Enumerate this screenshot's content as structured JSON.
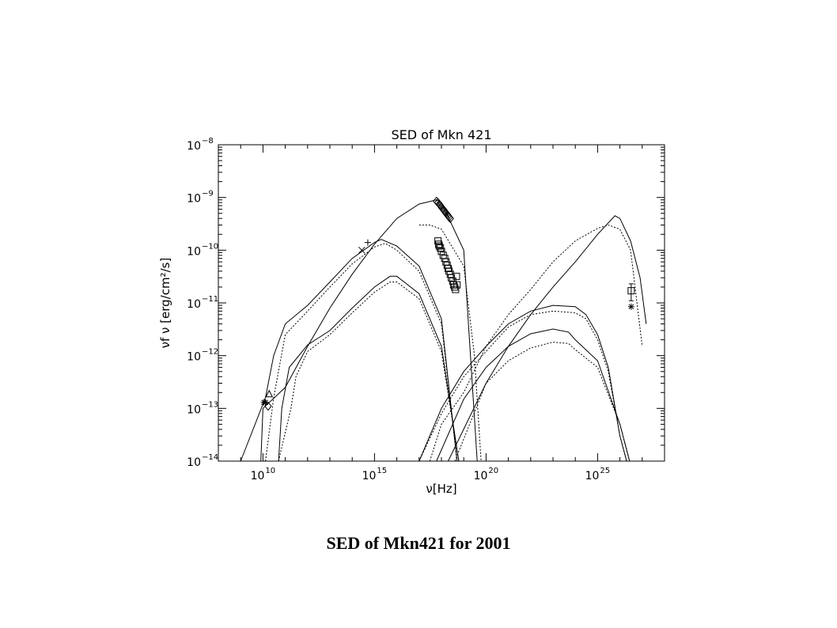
{
  "caption": "SED of Mkn421 for 2001",
  "chart_data": {
    "type": "line",
    "title": "SED of Mkn 421",
    "xlabel": "ν[Hz]",
    "ylabel": "νf ν [erg/cm²/s]",
    "x_scale": "log",
    "y_scale": "log",
    "xlim": [
      100000000.0,
      1e+28
    ],
    "ylim": [
      1e-14,
      1e-08
    ],
    "x_ticks": [
      {
        "value": 10000000000.0,
        "base": "10",
        "exp": "10"
      },
      {
        "value": 1000000000000000.0,
        "base": "10",
        "exp": "15"
      },
      {
        "value": 1e+20,
        "base": "10",
        "exp": "20"
      },
      {
        "value": 1e+25,
        "base": "10",
        "exp": "25"
      }
    ],
    "y_ticks": [
      {
        "value": 1e-14,
        "base": "10",
        "exp": "−14"
      },
      {
        "value": 1e-13,
        "base": "10",
        "exp": "−13"
      },
      {
        "value": 1e-12,
        "base": "10",
        "exp": "−12"
      },
      {
        "value": 1e-11,
        "base": "10",
        "exp": "−11"
      },
      {
        "value": 1e-10,
        "base": "10",
        "exp": "−10"
      },
      {
        "value": 1e-09,
        "base": "10",
        "exp": "−9"
      },
      {
        "value": 1e-08,
        "base": "10",
        "exp": "−8"
      }
    ],
    "grid": false,
    "series": [
      {
        "style": "solid",
        "points": [
          [
            1000000000.0,
            1e-14
          ],
          [
            13000000000.0,
            1.6e-13
          ],
          [
            30000000000.0,
            1e-12
          ],
          [
            100000000000.0,
            4e-12
          ],
          [
            1000000000000.0,
            9e-12
          ],
          [
            10000000000000.0,
            2.5e-11
          ],
          [
            100000000000000.0,
            7e-11
          ],
          [
            1000000000000000.0,
            1.4e-10
          ],
          [
            2000000000000000.0,
            1.6e-10
          ],
          [
            1e+16,
            1.2e-10
          ],
          [
            1e+17,
            5e-11
          ],
          [
            1e+18,
            5e-12
          ],
          [
            5e+18,
            1e-14
          ]
        ]
      },
      {
        "style": "dotted",
        "points": [
          [
            13000000000.0,
            1e-14
          ],
          [
            30000000000.0,
            1.6e-13
          ],
          [
            100000000000.0,
            2.5e-12
          ],
          [
            1000000000000.0,
            7e-12
          ],
          [
            10000000000000.0,
            2e-11
          ],
          [
            100000000000000.0,
            5.5e-11
          ],
          [
            1000000000000000.0,
            1.15e-10
          ],
          [
            3000000000000000.0,
            1.35e-10
          ],
          [
            1e+16,
            1e-10
          ],
          [
            1e+17,
            4e-11
          ],
          [
            1e+18,
            4e-12
          ],
          [
            5e+18,
            1e-14
          ]
        ]
      },
      {
        "style": "solid",
        "points": [
          [
            50000000000.0,
            1e-14
          ],
          [
            70000000000.0,
            1e-13
          ],
          [
            150000000000.0,
            6e-13
          ],
          [
            1000000000000.0,
            1.6e-12
          ],
          [
            10000000000000.0,
            3e-12
          ],
          [
            100000000000000.0,
            8e-12
          ],
          [
            1000000000000000.0,
            2e-11
          ],
          [
            5000000000000000.0,
            3.2e-11
          ],
          [
            1e+16,
            3.2e-11
          ],
          [
            1e+17,
            1.5e-11
          ],
          [
            1e+18,
            1.5e-12
          ],
          [
            6e+18,
            1e-14
          ]
        ]
      },
      {
        "style": "dotted",
        "points": [
          [
            50000000000.0,
            1e-14
          ],
          [
            180000000000.0,
            1e-13
          ],
          [
            300000000000.0,
            4e-13
          ],
          [
            1000000000000.0,
            1.2e-12
          ],
          [
            10000000000000.0,
            2.5e-12
          ],
          [
            100000000000000.0,
            6.5e-12
          ],
          [
            1000000000000000.0,
            1.6e-11
          ],
          [
            5000000000000000.0,
            2.5e-11
          ],
          [
            1e+16,
            2.5e-11
          ],
          [
            1e+17,
            1.2e-11
          ],
          [
            1e+18,
            1.2e-12
          ],
          [
            6e+18,
            1e-14
          ]
        ]
      },
      {
        "style": "solid",
        "points": [
          [
            8000000000.0,
            1e-14
          ],
          [
            10000000000.0,
            1e-13
          ],
          [
            100000000000.0,
            2.5e-13
          ],
          [
            1000000000000.0,
            1.5e-12
          ],
          [
            10000000000000.0,
            8e-12
          ],
          [
            100000000000000.0,
            3.5e-11
          ],
          [
            1000000000000000.0,
            1.3e-10
          ],
          [
            1e+16,
            4e-10
          ],
          [
            1e+17,
            7.5e-10
          ],
          [
            6e+17,
            9e-10
          ],
          [
            1e+18,
            8e-10
          ],
          [
            1e+19,
            1e-10
          ],
          [
            2e+19,
            1e-12
          ],
          [
            4e+19,
            1e-14
          ]
        ]
      },
      {
        "style": "dotted",
        "points": [
          [
            1e+17,
            3e-10
          ],
          [
            3e+17,
            3e-10
          ],
          [
            1e+18,
            2.5e-10
          ],
          [
            1e+19,
            5e-11
          ],
          [
            3e+19,
            1e-12
          ],
          [
            6e+19,
            1e-14
          ]
        ]
      },
      {
        "style": "solid",
        "points": [
          [
            2e+18,
            1e-14
          ],
          [
            1e+20,
            3e-13
          ],
          [
            1e+21,
            1.5e-12
          ],
          [
            1e+22,
            6e-12
          ],
          [
            1e+23,
            2e-11
          ],
          [
            1e+24,
            6e-11
          ],
          [
            1e+25,
            2e-10
          ],
          [
            6e+25,
            4.5e-10
          ],
          [
            1e+26,
            4e-10
          ],
          [
            3e+26,
            1.5e-10
          ],
          [
            8e+26,
            3e-11
          ],
          [
            1.5e+27,
            4e-12
          ]
        ]
      },
      {
        "style": "dotted",
        "points": [
          [
            3e+17,
            1e-14
          ],
          [
            1e+18,
            5e-14
          ],
          [
            1e+19,
            2e-13
          ],
          [
            1e+20,
            1.5e-12
          ],
          [
            1e+21,
            6e-12
          ],
          [
            1e+22,
            1.8e-11
          ],
          [
            1e+23,
            6e-11
          ],
          [
            1e+24,
            1.5e-10
          ],
          [
            1e+25,
            2.6e-10
          ],
          [
            3e+25,
            3e-10
          ],
          [
            1e+26,
            2.5e-10
          ],
          [
            3e+26,
            1e-10
          ],
          [
            1e+27,
            1.5e-12
          ]
        ]
      },
      {
        "style": "solid",
        "points": [
          [
            1e+17,
            1e-14
          ],
          [
            1e+18,
            1e-13
          ],
          [
            1e+19,
            5e-13
          ],
          [
            1e+20,
            1.5e-12
          ],
          [
            1e+21,
            4e-12
          ],
          [
            1e+22,
            7e-12
          ],
          [
            1e+23,
            9e-12
          ],
          [
            1e+24,
            8.5e-12
          ],
          [
            3e+24,
            6e-12
          ],
          [
            1e+25,
            2.5e-12
          ],
          [
            3e+25,
            6e-13
          ],
          [
            1e+26,
            3e-14
          ],
          [
            2e+26,
            1e-14
          ]
        ]
      },
      {
        "style": "dotted",
        "points": [
          [
            1e+17,
            1e-14
          ],
          [
            1e+18,
            8e-14
          ],
          [
            1e+19,
            4e-13
          ],
          [
            1e+20,
            1.2e-12
          ],
          [
            1e+21,
            3.5e-12
          ],
          [
            1e+22,
            6e-12
          ],
          [
            1e+23,
            7e-12
          ],
          [
            1e+24,
            6.5e-12
          ],
          [
            3e+24,
            5e-12
          ],
          [
            1e+25,
            2e-12
          ],
          [
            3e+25,
            5e-13
          ],
          [
            1e+26,
            3e-14
          ],
          [
            2e+26,
            1e-14
          ]
        ]
      },
      {
        "style": "solid",
        "points": [
          [
            6e+17,
            1e-14
          ],
          [
            1e+19,
            1.5e-13
          ],
          [
            1e+20,
            6e-13
          ],
          [
            1e+21,
            1.5e-12
          ],
          [
            1e+22,
            2.6e-12
          ],
          [
            1e+23,
            3.2e-12
          ],
          [
            5e+23,
            2.8e-12
          ],
          [
            1e+24,
            2e-12
          ],
          [
            1e+25,
            8e-13
          ],
          [
            1e+26,
            5e-14
          ],
          [
            2.7e+26,
            1e-14
          ]
        ]
      },
      {
        "style": "dotted",
        "points": [
          [
            4e+18,
            1e-14
          ],
          [
            1e+20,
            3e-13
          ],
          [
            1e+21,
            8e-13
          ],
          [
            1e+22,
            1.4e-12
          ],
          [
            1e+23,
            1.8e-12
          ],
          [
            5e+23,
            1.7e-12
          ],
          [
            1e+24,
            1.3e-12
          ],
          [
            1e+25,
            6e-13
          ],
          [
            1e+26,
            5e-14
          ],
          [
            2.7e+26,
            1e-14
          ]
        ]
      }
    ],
    "markers": [
      {
        "symbol": "asterisk",
        "points": [
          [
            11000000000.0,
            1.3e-13
          ],
          [
            13000000000.0,
            1.3e-13
          ],
          [
            3.2e+26,
            8.5e-12
          ]
        ]
      },
      {
        "symbol": "diamond",
        "points": [
          [
            17000000000.0,
            1.1e-13
          ],
          [
            6e+17,
            8.5e-10
          ],
          [
            7e+17,
            8e-10
          ],
          [
            8e+17,
            7.5e-10
          ],
          [
            9e+17,
            7e-10
          ],
          [
            1e+18,
            6.5e-10
          ],
          [
            1.1e+18,
            6.2e-10
          ],
          [
            1.2e+18,
            6e-10
          ],
          [
            1.3e+18,
            5.7e-10
          ],
          [
            1.4e+18,
            5.5e-10
          ],
          [
            1.5e+18,
            5.2e-10
          ],
          [
            1.6e+18,
            5e-10
          ],
          [
            1.8e+18,
            4.8e-10
          ],
          [
            2e+18,
            4.5e-10
          ],
          [
            2.2e+18,
            4.2e-10
          ],
          [
            2.5e+18,
            4e-10
          ]
        ]
      },
      {
        "symbol": "triangle",
        "points": [
          [
            19000000000.0,
            1.9e-13
          ]
        ]
      },
      {
        "symbol": "plus",
        "points": [
          [
            500000000000000.0,
            1.4e-10
          ]
        ]
      },
      {
        "symbol": "x",
        "points": [
          [
            270000000000000.0,
            1e-10
          ]
        ]
      },
      {
        "symbol": "square",
        "points": [
          [
            7e+17,
            1.5e-10
          ],
          [
            7.5e+17,
            1.3e-10
          ],
          [
            8e+17,
            1.2e-10
          ],
          [
            9e+17,
            1.1e-10
          ],
          [
            1e+18,
            9.5e-11
          ],
          [
            1.2e+18,
            8e-11
          ],
          [
            1.4e+18,
            7e-11
          ],
          [
            1.6e+18,
            6e-11
          ],
          [
            1.8e+18,
            5.2e-11
          ],
          [
            2e+18,
            4.5e-11
          ],
          [
            2.2e+18,
            4e-11
          ],
          [
            2.5e+18,
            3.5e-11
          ],
          [
            2.8e+18,
            3e-11
          ],
          [
            3.2e+18,
            2.6e-11
          ],
          [
            3.5e+18,
            2.2e-11
          ],
          [
            3.9e+18,
            2e-11
          ],
          [
            4.3e+18,
            1.8e-11
          ],
          [
            4.7e+18,
            3.2e-11
          ],
          [
            5e+18,
            2.2e-11
          ],
          [
            3.2e+26,
            1.7e-11
          ]
        ]
      }
    ],
    "error_bars": [
      {
        "x": 3.2e+26,
        "y_low": 1.1e-11,
        "y_high": 2.3e-11
      }
    ]
  }
}
